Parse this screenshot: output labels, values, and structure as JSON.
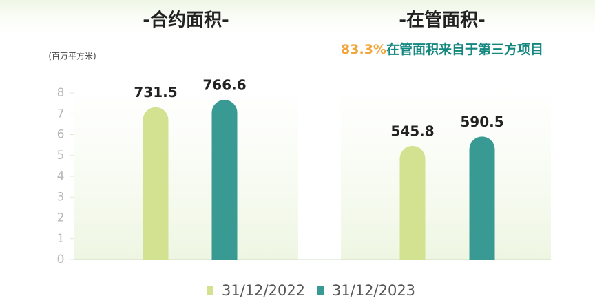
{
  "chart_data": [
    {
      "type": "bar",
      "title": "-合约面积-",
      "y_label": "(百万平方米)",
      "series": [
        {
          "name": "31/12/2022",
          "color": "#d3e291",
          "values": [
            731.5
          ]
        },
        {
          "name": "31/12/2023",
          "color": "#399a93",
          "values": [
            766.6
          ]
        }
      ],
      "ylim": [
        0,
        800
      ],
      "yticks": [
        {
          "value": 0,
          "label": "0"
        },
        {
          "value": 100,
          "label": "1"
        },
        {
          "value": 200,
          "label": "2"
        },
        {
          "value": 300,
          "label": "3"
        },
        {
          "value": 400,
          "label": "4"
        },
        {
          "value": 500,
          "label": "5"
        },
        {
          "value": 600,
          "label": "6"
        },
        {
          "value": 700,
          "label": "7"
        },
        {
          "value": 800,
          "label": "8"
        }
      ]
    },
    {
      "type": "bar",
      "title": "-在管面积-",
      "subtitle": {
        "highlight": "83.3%",
        "text": "在管面积来自于第三方项目"
      },
      "series": [
        {
          "name": "31/12/2022",
          "color": "#d3e291",
          "values": [
            545.8
          ]
        },
        {
          "name": "31/12/2023",
          "color": "#399a93",
          "values": [
            590.5
          ]
        }
      ],
      "ylim": [
        0,
        800
      ]
    }
  ]
}
